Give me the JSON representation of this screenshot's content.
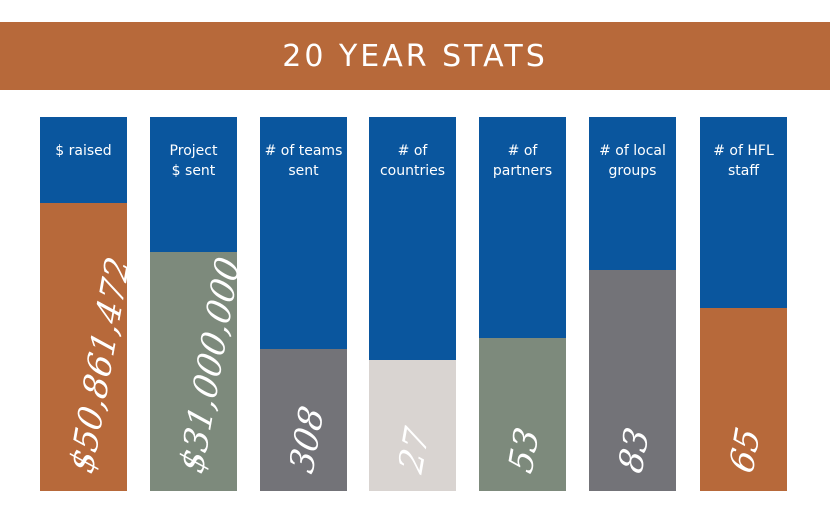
{
  "header": {
    "title": "20 YEAR STATS"
  },
  "chart_data": {
    "type": "bar",
    "title": "20 YEAR STATS",
    "series": [
      {
        "label_lines": [
          "$ raised"
        ],
        "value_text": "$50,861,472",
        "fill_fraction": 0.77,
        "fill_color": "#b7693a"
      },
      {
        "label_lines": [
          "Project",
          "$ sent"
        ],
        "value_text": "$31,000,000",
        "fill_fraction": 0.64,
        "fill_color": "#7d8a7c"
      },
      {
        "label_lines": [
          "# of teams",
          "sent"
        ],
        "value_text": "308",
        "fill_fraction": 0.38,
        "fill_color": "#737378"
      },
      {
        "label_lines": [
          "# of",
          "countries"
        ],
        "value_text": "27",
        "fill_fraction": 0.35,
        "fill_color": "#d9d4d1"
      },
      {
        "label_lines": [
          "# of",
          "partners"
        ],
        "value_text": "53",
        "fill_fraction": 0.41,
        "fill_color": "#7d8a7c"
      },
      {
        "label_lines": [
          "# of local",
          "groups"
        ],
        "value_text": "83",
        "fill_fraction": 0.59,
        "fill_color": "#737378"
      },
      {
        "label_lines": [
          "# of HFL",
          "staff"
        ],
        "value_text": "65",
        "fill_fraction": 0.49,
        "fill_color": "#b7693a"
      }
    ],
    "column_color": "#0a569e"
  },
  "colors": {
    "banner": "#b7693a",
    "background": "#ffffff"
  }
}
